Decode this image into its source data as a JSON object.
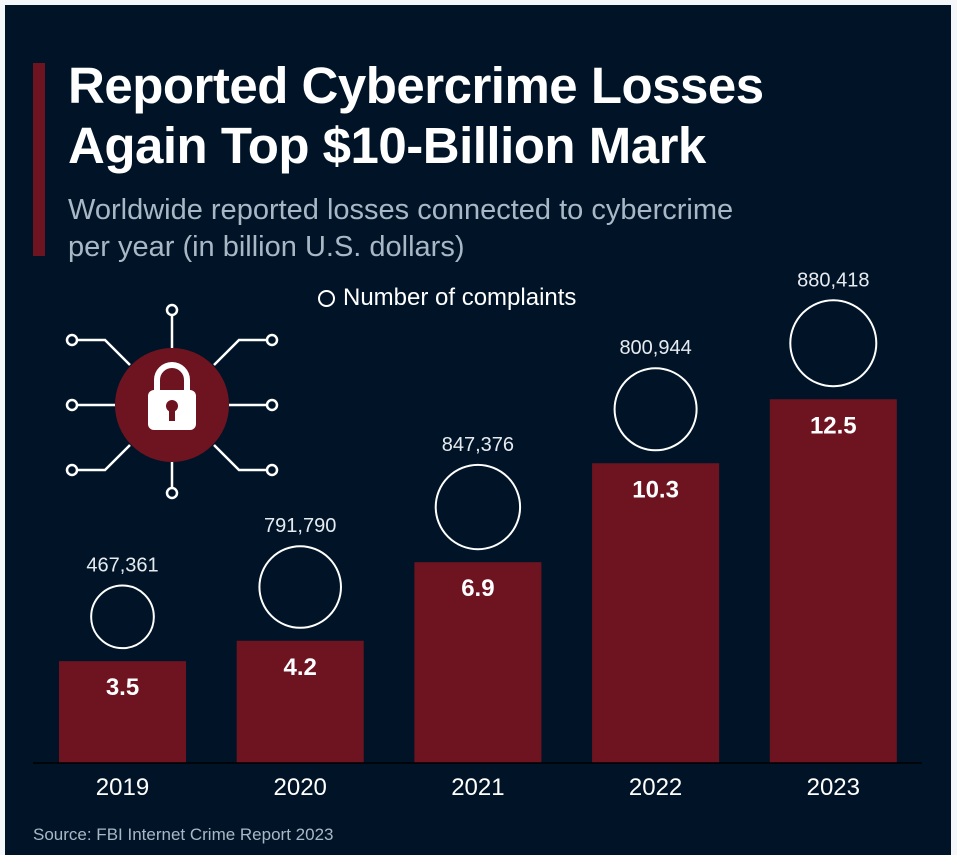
{
  "title_lines": [
    "Reported Cybercrime Losses",
    "Again Top $10-Billion Mark"
  ],
  "subtitle_lines": [
    "Worldwide reported losses connected to cybercrime",
    "per year (in billion U.S. dollars)"
  ],
  "source": "Source: FBI Internet Crime Report 2023",
  "icon": "padlock-circuit-icon",
  "colors": {
    "background": "#011427",
    "bar": "#6e1420",
    "text": "#ffffff",
    "muted": "#a9b8c6"
  },
  "chart_data": {
    "type": "bar",
    "title": "Reported Cybercrime Losses Again Top $10-Billion Mark",
    "subtitle": "Worldwide reported losses connected to cybercrime per year (in billion U.S. dollars)",
    "categories": [
      "2019",
      "2020",
      "2021",
      "2022",
      "2023"
    ],
    "values": [
      3.5,
      4.2,
      6.9,
      10.3,
      12.5
    ],
    "value_labels": [
      "3.5",
      "4.2",
      "6.9",
      "10.3",
      "12.5"
    ],
    "bubbles": {
      "name": "Number of complaints",
      "values": [
        467361,
        791790,
        847376,
        800944,
        880418
      ],
      "labels": [
        "467,361",
        "791,790",
        "847,376",
        "800,944",
        "880,418"
      ]
    },
    "legend": "top-center",
    "grid": false
  }
}
